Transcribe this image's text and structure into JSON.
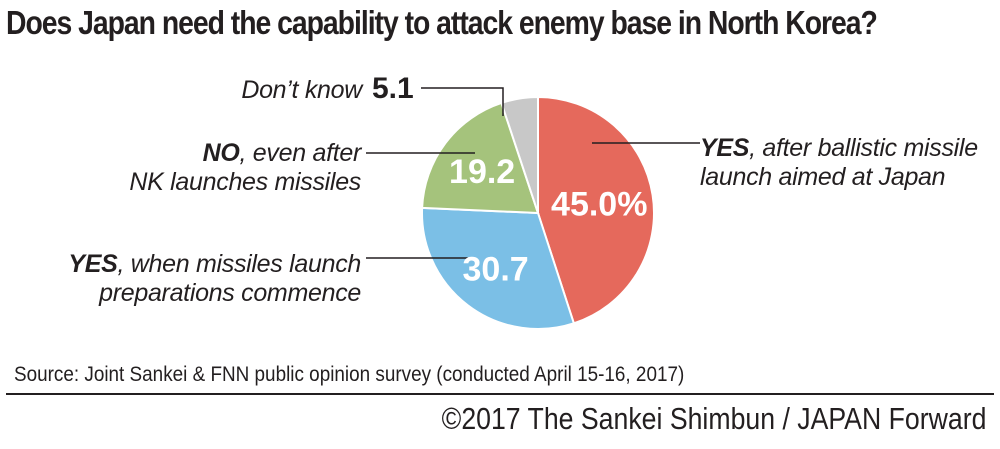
{
  "chart_data": {
    "type": "pie",
    "title": "Does Japan need the capability to attack enemy base in North Korea?",
    "slices": [
      {
        "key": "yes_after",
        "label_bold": "YES",
        "label_rest": ", after ballistic missile launch aimed at Japan",
        "value": 45.0,
        "display": "45.0%",
        "color": "#e5695c"
      },
      {
        "key": "yes_prep",
        "label_bold": "YES",
        "label_rest": ", when missiles launch preparations commence",
        "value": 30.7,
        "display": "30.7",
        "color": "#7bbfe6"
      },
      {
        "key": "no",
        "label_bold": "NO",
        "label_rest": ", even after NK launches missiles",
        "value": 19.2,
        "display": "19.2",
        "color": "#a5c37c"
      },
      {
        "key": "dont_know",
        "label_bold": "",
        "label_rest": "Don’t know",
        "value": 5.1,
        "display": "5.1",
        "color": "#c8c8c8"
      }
    ]
  },
  "labels": {
    "yes_after_bold": "YES",
    "yes_after_line1": ", after ballistic missile",
    "yes_after_line2": "launch aimed at Japan",
    "yes_prep_bold": "YES",
    "yes_prep_line1": ", when missiles launch",
    "yes_prep_line2": "preparations commence",
    "no_bold": "NO",
    "no_line1": ", even after",
    "no_line2": "NK launches missiles",
    "dont_know": "Don’t know",
    "dont_know_value": "5.1"
  },
  "footer": {
    "source": "Source: Joint Sankei & FNN public opinion survey (conducted April 15-16, 2017)",
    "credit": "©2017 The Sankei Shimbun / JAPAN Forward"
  }
}
